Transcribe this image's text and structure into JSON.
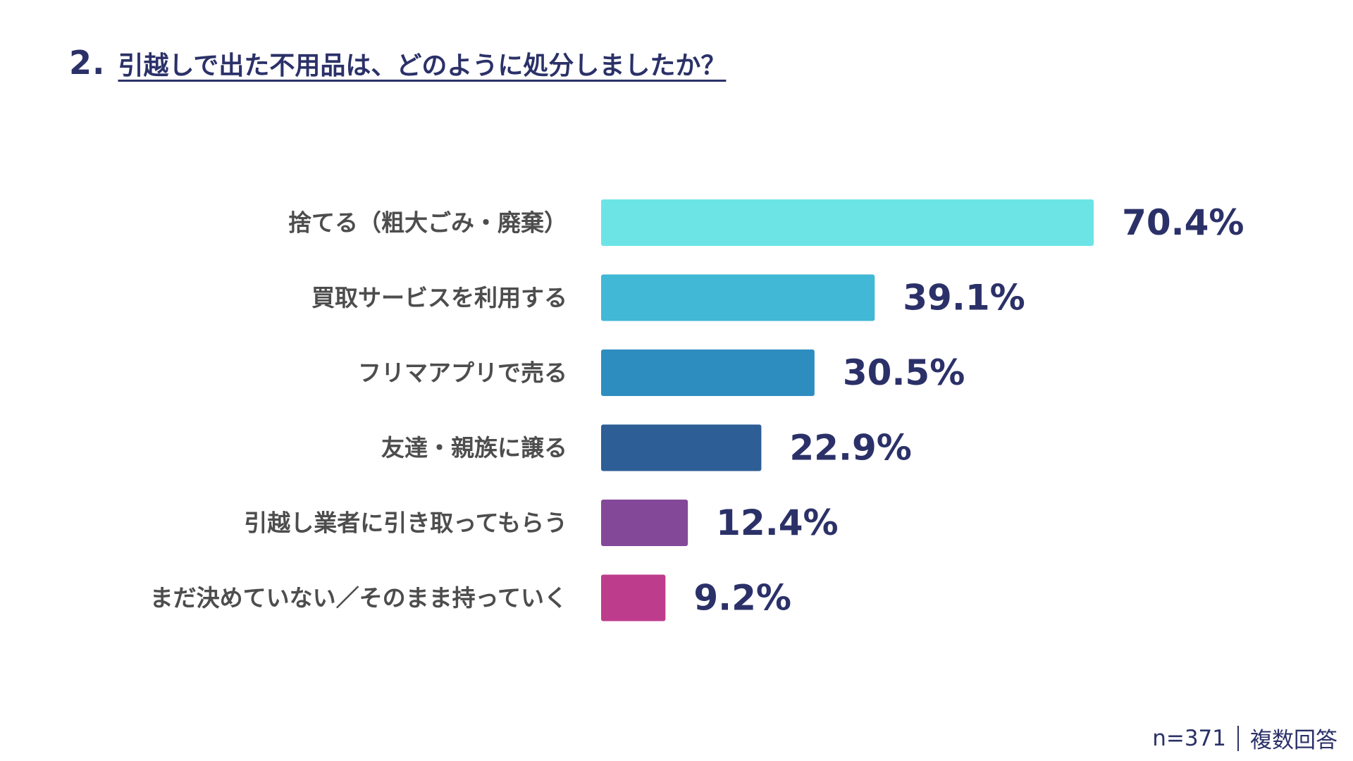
{
  "question": {
    "number": "2.",
    "text": "引越しで出た不用品は、どのように処分しましたか？"
  },
  "footer": {
    "sample": "n=371",
    "note": "複数回答"
  },
  "chart_data": {
    "type": "bar",
    "orientation": "horizontal",
    "title": "引越しで出た不用品は、どのように処分しましたか？",
    "categories": [
      "捨てる（粗大ごみ・廃棄）",
      "買取サービスを利用する",
      "フリマアプリで売る",
      "友達・親族に譲る",
      "引越し業者に引き取ってもらう",
      "まだ決めていない／そのまま持っていく"
    ],
    "values": [
      70.4,
      39.1,
      30.5,
      22.9,
      12.4,
      9.2
    ],
    "value_labels": [
      "70.4%",
      "39.1%",
      "30.5%",
      "22.9%",
      "12.4%",
      "9.2%"
    ],
    "bar_colors": [
      "#6ce4e6",
      "#41b8d5",
      "#2e8dbf",
      "#2e5e96",
      "#844899",
      "#bd3d8c"
    ],
    "unit": "%",
    "xlim": [
      0,
      100
    ],
    "grid": false,
    "legend": "none"
  }
}
